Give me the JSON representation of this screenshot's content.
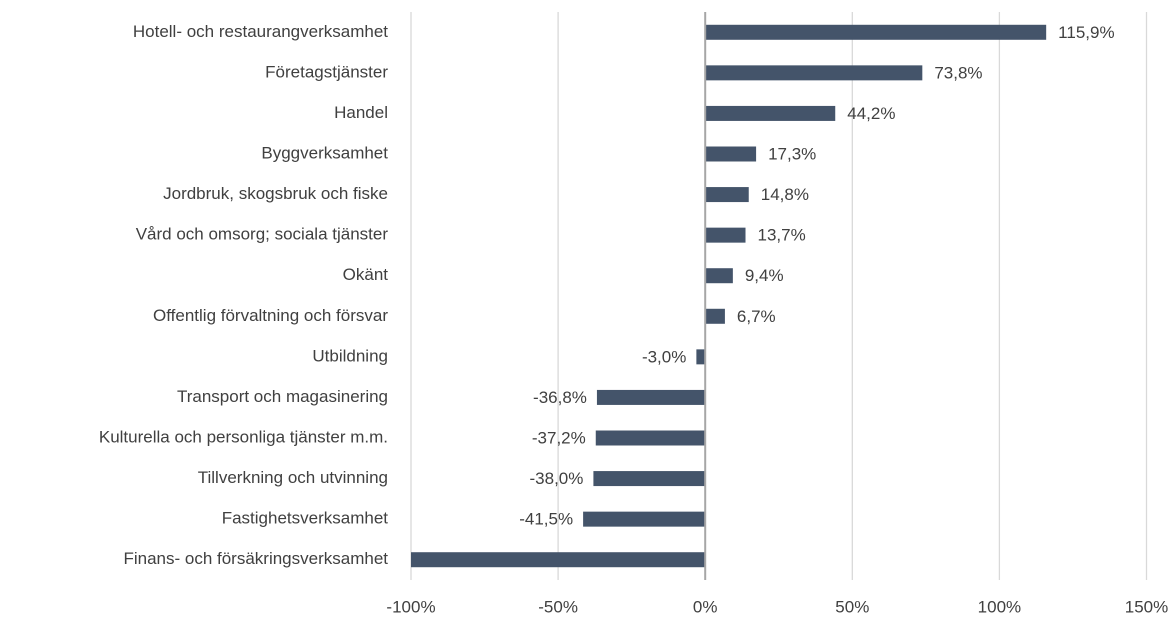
{
  "chart_data": {
    "type": "bar",
    "orientation": "horizontal",
    "categories": [
      "Hotell- och restaurangverksamhet",
      "Företagstjänster",
      "Handel",
      "Byggverksamhet",
      "Jordbruk, skogsbruk och fiske",
      "Vård och omsorg; sociala tjänster",
      "Okänt",
      "Offentlig förvaltning och försvar",
      "Utbildning",
      "Transport och magasinering",
      "Kulturella och personliga tjänster m.m.",
      "Tillverkning och utvinning",
      "Fastighetsverksamhet",
      "Finans- och försäkringsverksamhet"
    ],
    "values": [
      115.9,
      73.8,
      44.2,
      17.3,
      14.8,
      13.7,
      9.4,
      6.7,
      -3.0,
      -36.8,
      -37.2,
      -38.0,
      -41.5,
      -100
    ],
    "value_labels": [
      "115,9%",
      "73,8%",
      "44,2%",
      "17,3%",
      "14,8%",
      "13,7%",
      "9,4%",
      "6,7%",
      "-3,0%",
      "-36,8%",
      "-37,2%",
      "-38,0%",
      "-41,5%",
      null
    ],
    "color": "#44546a",
    "xlim": [
      -100,
      150
    ],
    "xticks": [
      {
        "value": -100,
        "label": "-100%"
      },
      {
        "value": -50,
        "label": "-50%"
      },
      {
        "value": 0,
        "label": "0%"
      },
      {
        "value": 50,
        "label": "50%"
      },
      {
        "value": 100,
        "label": "100%"
      },
      {
        "value": 150,
        "label": "150%"
      }
    ],
    "grid": true
  }
}
